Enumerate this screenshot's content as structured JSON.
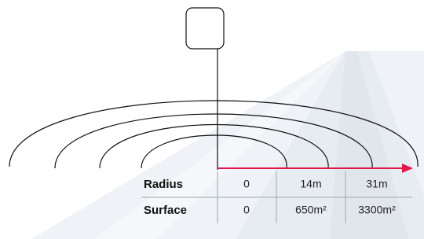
{
  "table": {
    "rows": [
      [
        "Radius",
        "0",
        "14m",
        "31m"
      ],
      [
        "Surface",
        "0",
        "650m²",
        "3300m²"
      ]
    ]
  }
}
